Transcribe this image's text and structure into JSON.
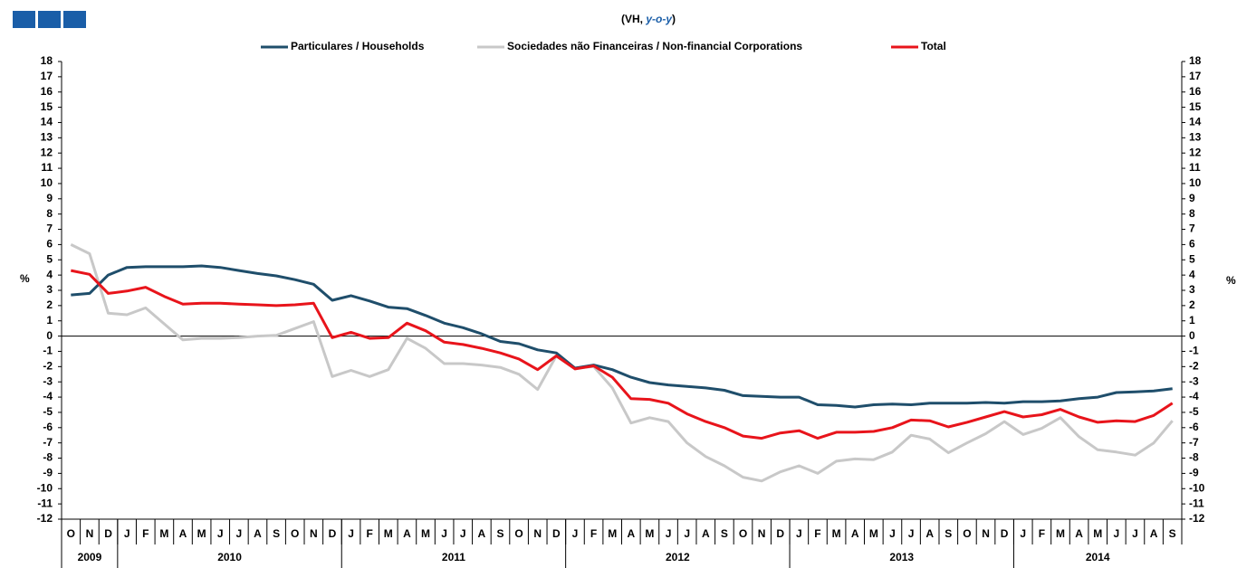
{
  "chart_data": {
    "type": "line",
    "title": {
      "prefix": "(VH, ",
      "emphasis": "y-o-y",
      "suffix": ")"
    },
    "ylabel": "%",
    "categories": [
      "O",
      "N",
      "D",
      "J",
      "F",
      "M",
      "A",
      "M",
      "J",
      "J",
      "A",
      "S",
      "O",
      "N",
      "D",
      "J",
      "F",
      "M",
      "A",
      "M",
      "J",
      "J",
      "A",
      "S",
      "O",
      "N",
      "D",
      "J",
      "F",
      "M",
      "A",
      "M",
      "J",
      "J",
      "A",
      "S",
      "O",
      "N",
      "D",
      "J",
      "F",
      "M",
      "A",
      "M",
      "J",
      "J",
      "A",
      "S",
      "O",
      "N",
      "D",
      "J",
      "F",
      "M",
      "A",
      "M",
      "J",
      "J",
      "A",
      "S"
    ],
    "years": [
      "2009",
      "2010",
      "2011",
      "2012",
      "2013",
      "2014"
    ],
    "ylim": [
      -12,
      18
    ],
    "yticks": [
      -12,
      -11,
      -10,
      -9,
      -8,
      -7,
      -6,
      -5,
      -4,
      -3,
      -2,
      -1,
      0,
      1,
      2,
      3,
      4,
      5,
      6,
      7,
      8,
      9,
      10,
      11,
      12,
      13,
      14,
      15,
      16,
      17,
      18
    ],
    "series": [
      {
        "name": "Particulares / Households",
        "color": "#1f4e6b",
        "values": [
          2.7,
          2.8,
          4.0,
          4.5,
          4.55,
          4.55,
          4.55,
          4.6,
          4.5,
          4.3,
          4.1,
          3.95,
          3.7,
          3.4,
          2.35,
          2.65,
          2.3,
          1.9,
          1.8,
          1.35,
          0.85,
          0.55,
          0.15,
          -0.35,
          -0.5,
          -0.9,
          -1.1,
          -2.1,
          -1.9,
          -2.2,
          -2.7,
          -3.05,
          -3.2,
          -3.3,
          -3.4,
          -3.55,
          -3.9,
          -3.95,
          -4.0,
          -4.0,
          -4.5,
          -4.55,
          -4.65,
          -4.5,
          -4.45,
          -4.5,
          -4.4,
          -4.4,
          -4.4,
          -4.35,
          -4.4,
          -4.3,
          -4.3,
          -4.25,
          -4.1,
          -4.0,
          -3.7,
          -3.65,
          -3.6,
          -3.45
        ]
      },
      {
        "name": "Sociedades não Financeiras / Non-financial Corporations",
        "color": "#c8c8c8",
        "values": [
          6.0,
          5.4,
          1.5,
          1.4,
          1.85,
          0.8,
          -0.25,
          -0.15,
          -0.15,
          -0.1,
          0.0,
          0.05,
          0.5,
          0.95,
          -2.65,
          -2.25,
          -2.65,
          -2.2,
          -0.15,
          -0.8,
          -1.8,
          -1.8,
          -1.9,
          -2.05,
          -2.5,
          -3.5,
          -1.3,
          -2.1,
          -2.0,
          -3.4,
          -5.7,
          -5.35,
          -5.6,
          -7.0,
          -7.9,
          -8.5,
          -9.25,
          -9.5,
          -8.9,
          -8.5,
          -9.0,
          -8.2,
          -8.05,
          -8.1,
          -7.6,
          -6.5,
          -6.75,
          -7.65,
          -7.0,
          -6.4,
          -5.6,
          -6.45,
          -6.05,
          -5.35,
          -6.6,
          -7.45,
          -7.6,
          -7.8,
          -7.0,
          -5.55
        ]
      },
      {
        "name": "Total",
        "color": "#e8141b",
        "values": [
          4.3,
          4.05,
          2.8,
          2.95,
          3.2,
          2.6,
          2.1,
          2.15,
          2.15,
          2.1,
          2.05,
          2.0,
          2.05,
          2.15,
          -0.1,
          0.25,
          -0.15,
          -0.1,
          0.85,
          0.35,
          -0.4,
          -0.55,
          -0.8,
          -1.1,
          -1.5,
          -2.2,
          -1.3,
          -2.15,
          -1.95,
          -2.7,
          -4.1,
          -4.15,
          -4.4,
          -5.1,
          -5.6,
          -6.0,
          -6.55,
          -6.7,
          -6.35,
          -6.2,
          -6.7,
          -6.3,
          -6.3,
          -6.25,
          -6.0,
          -5.5,
          -5.55,
          -5.95,
          -5.65,
          -5.3,
          -4.95,
          -5.3,
          -5.15,
          -4.8,
          -5.3,
          -5.65,
          -5.55,
          -5.6,
          -5.2,
          -4.4
        ]
      }
    ]
  }
}
